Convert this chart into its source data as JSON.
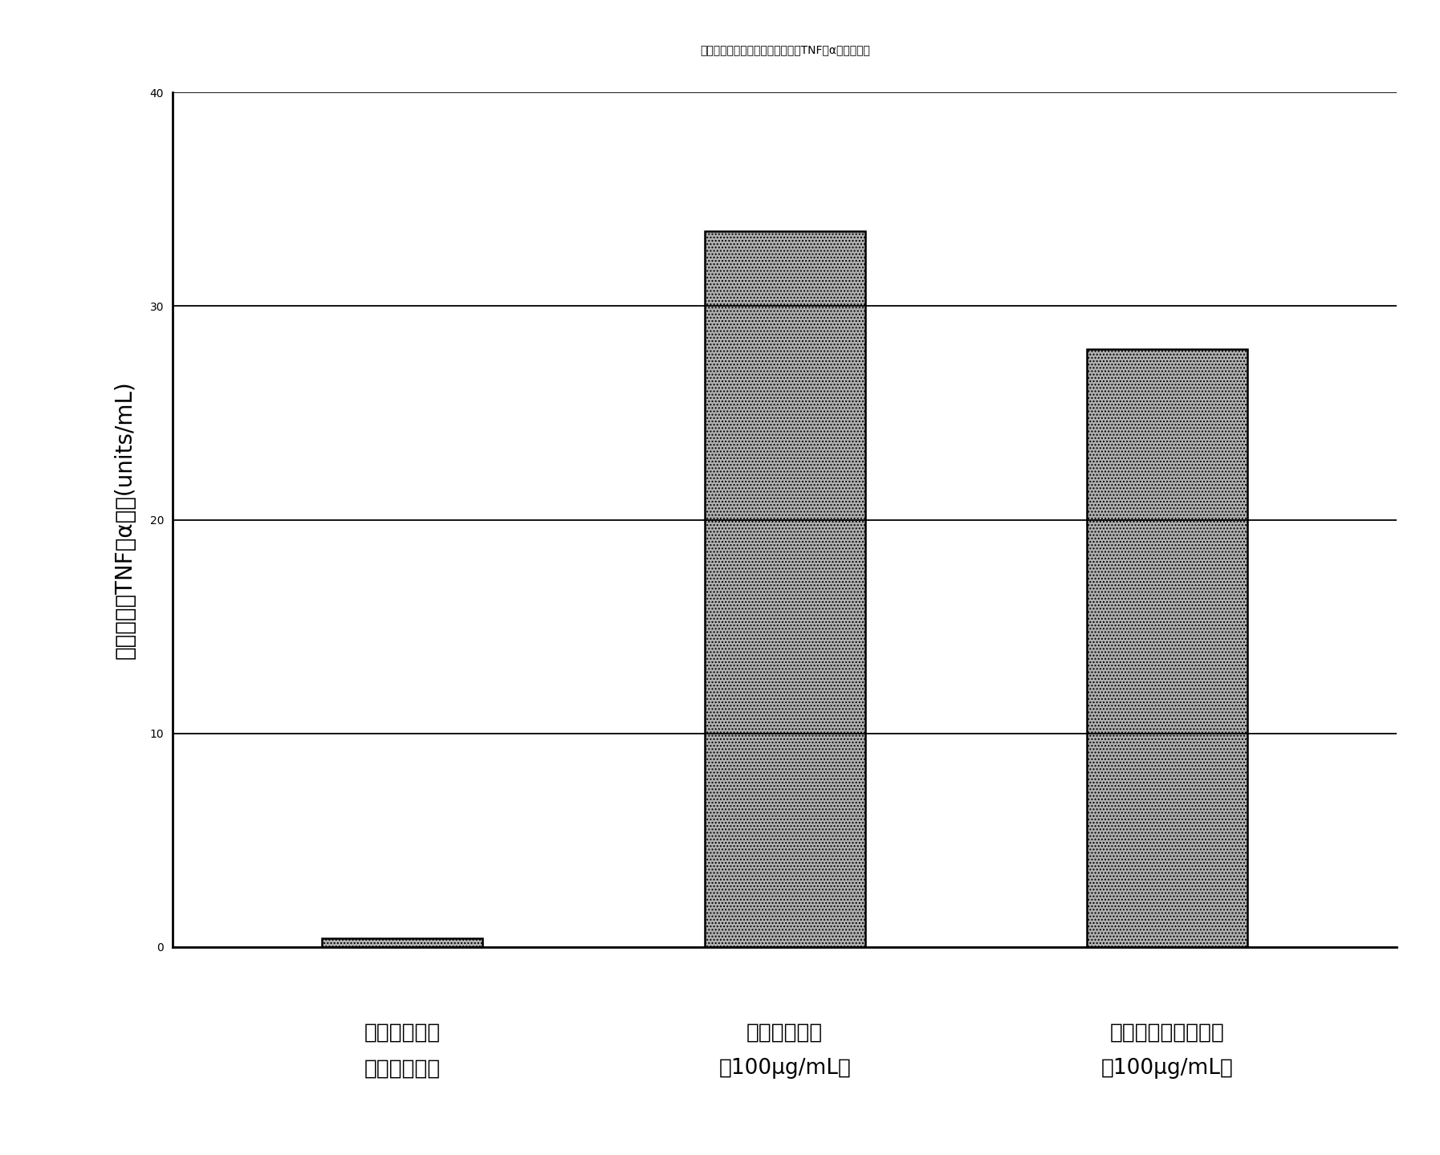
{
  "title": "図５　鹿角霊芝熱水抽出液によるTNF－α活性の誘導",
  "categories_line1": [
    "コントロール",
    "ピシバニール",
    "鹿角霊芝熱水抽出液"
  ],
  "categories_line2": [
    "（培地のみ）",
    "（100μg/mL）",
    "（100μg/mL）"
  ],
  "values": [
    0.4,
    33.5,
    28.0
  ],
  "ylabel_lines": [
    "誘導されたTNF－α活性(units/mL)"
  ],
  "ylim": [
    0,
    40
  ],
  "yticks": [
    0,
    10,
    20,
    30,
    40
  ],
  "bar_color": "#b0b0b0",
  "bar_edgecolor": "#000000",
  "background_color": "#ffffff",
  "hatch": "....",
  "title_fontsize": 26,
  "ylabel_fontsize": 20,
  "xtick_fontsize": 19,
  "ytick_fontsize": 22
}
